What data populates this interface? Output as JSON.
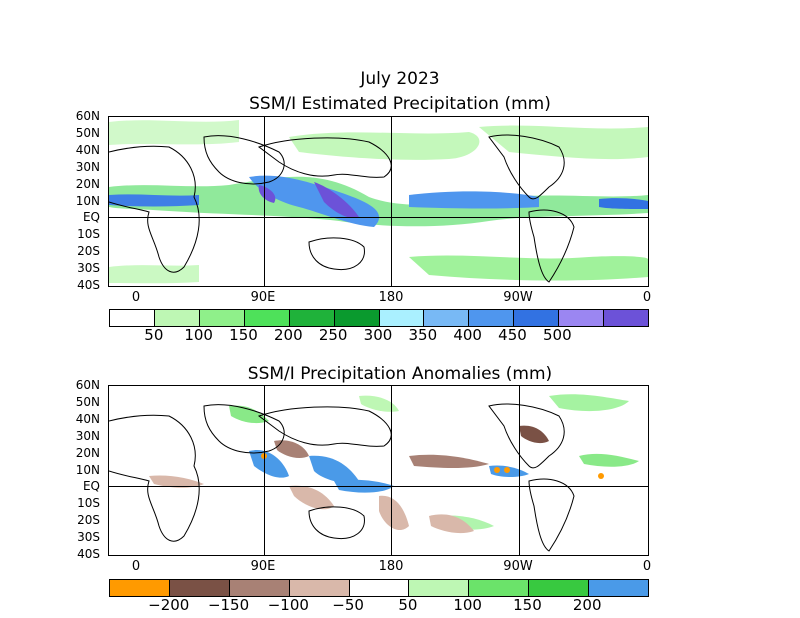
{
  "title_month": "July 2023",
  "panel1": {
    "title": "SSM/I Estimated Precipitation (mm)",
    "lat_labels": [
      "60N",
      "50N",
      "40N",
      "30N",
      "20N",
      "10N",
      "EQ",
      "10S",
      "20S",
      "30S",
      "40S"
    ],
    "lon_labels": [
      "0",
      "90E",
      "180",
      "90W",
      "0"
    ],
    "colorbar": {
      "colors": [
        "#ffffff",
        "#bef7b4",
        "#8ff08a",
        "#4ee15a",
        "#1fb23a",
        "#0a9a2e",
        "#aaf0ff",
        "#78b9f5",
        "#4f96ee",
        "#3272e2",
        "#9b86f2",
        "#6c52d8"
      ],
      "labels": [
        "50",
        "100",
        "150",
        "200",
        "250",
        "300",
        "350",
        "400",
        "450",
        "500"
      ]
    }
  },
  "panel2": {
    "title": "SSM/I Precipitation Anomalies (mm)",
    "lat_labels": [
      "60N",
      "50N",
      "40N",
      "30N",
      "20N",
      "10N",
      "EQ",
      "10S",
      "20S",
      "30S",
      "40S"
    ],
    "lon_labels": [
      "0",
      "90E",
      "180",
      "90W",
      "0"
    ],
    "colorbar": {
      "colors": [
        "#ff9a00",
        "#7a5145",
        "#a88175",
        "#d9b8aa",
        "#ffffff",
        "#bef7b4",
        "#6be36a",
        "#38c940",
        "#4a9ae8"
      ],
      "labels": [
        "−200",
        "−150",
        "−100",
        "−50",
        "50",
        "100",
        "150",
        "200"
      ]
    }
  }
}
